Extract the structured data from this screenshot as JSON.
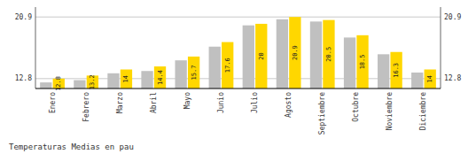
{
  "chart_data": {
    "type": "bar",
    "title": "Temperaturas Medias en pau",
    "categories": [
      "Enero",
      "Febrero",
      "Marzo",
      "Abril",
      "Mayo",
      "Junio",
      "Julio",
      "Agosto",
      "Septiembre",
      "Octubre",
      "Noviembre",
      "Diciembre"
    ],
    "series": [
      {
        "color": "#C0C0C0",
        "values": [
          12.3,
          12.6,
          13.5,
          13.8,
          15.2,
          17.0,
          19.8,
          20.6,
          20.3,
          18.2,
          16.0,
          13.6
        ]
      },
      {
        "color": "#FFD700",
        "data_labels": true,
        "values": [
          12.8,
          13.2,
          14.0,
          14.4,
          15.7,
          17.6,
          20.0,
          20.9,
          20.5,
          18.5,
          16.3,
          14.0
        ]
      }
    ],
    "ylim": [
      11.5,
      22.2
    ],
    "yticks": [
      12.8,
      20.9
    ],
    "y2lim": [
      11.5,
      22.2
    ],
    "y2ticks": [
      12.8,
      20.9
    ],
    "grid": true
  }
}
